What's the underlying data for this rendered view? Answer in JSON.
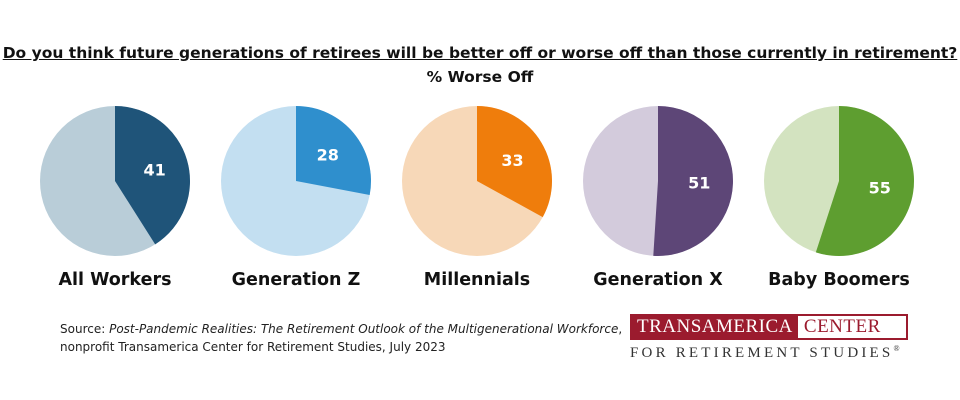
{
  "title": "Do you think future generations of retirees will be better off or worse off than those currently in retirement?",
  "subtitle": "% Worse Off",
  "source": {
    "prefix": "Source: ",
    "italic": "Post-Pandemic Realities: The Retirement Outlook of the Multigenerational Workforce",
    "suffix": ",",
    "line2": "nonprofit Transamerica Center for Retirement Studies, July 2023"
  },
  "logo": {
    "word1": "TRANSAMERICA",
    "word2": "CENTER",
    "line2": "FOR RETIREMENT STUDIES",
    "registered": "®"
  },
  "colors": {
    "brand": "#9b1b2e"
  },
  "chart_data": {
    "type": "pie",
    "unit": "% Worse Off",
    "pies": [
      {
        "label": "All Workers",
        "value": 41,
        "color": "#1f5479",
        "rest_color": "#b9cdd8"
      },
      {
        "label": "Generation Z",
        "value": 28,
        "color": "#2f8fcd",
        "rest_color": "#c3dff1"
      },
      {
        "label": "Millennials",
        "value": 33,
        "color": "#ef7d0c",
        "rest_color": "#f7d8b8"
      },
      {
        "label": "Generation X",
        "value": 51,
        "color": "#5d4677",
        "rest_color": "#d3cbdc"
      },
      {
        "label": "Baby Boomers",
        "value": 55,
        "color": "#5e9e30",
        "rest_color": "#d3e3c0"
      }
    ]
  }
}
